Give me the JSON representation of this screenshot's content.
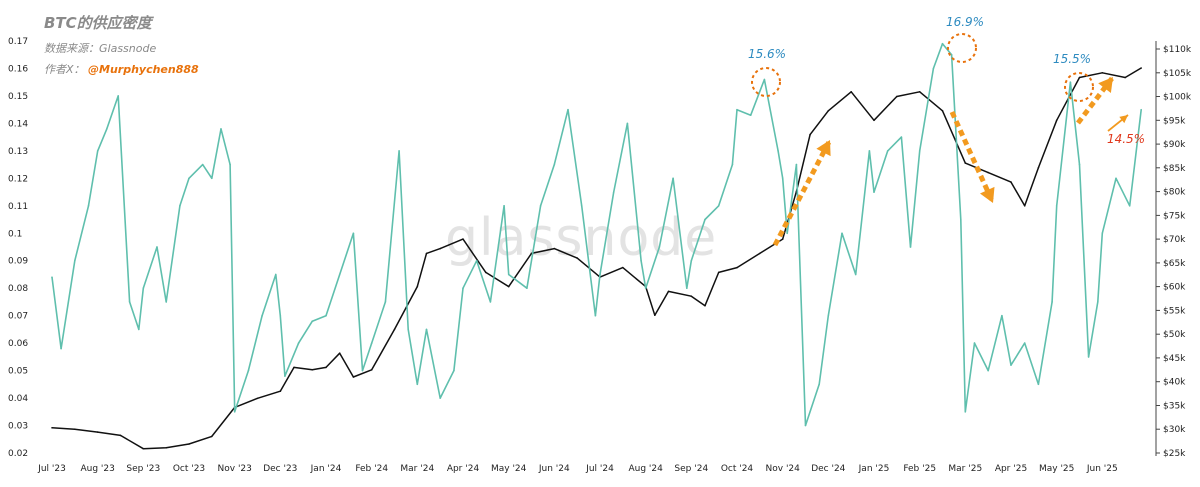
{
  "chart_data": {
    "type": "line",
    "title": "BTC的供应密度",
    "source_text": "数据来源：Glassnode",
    "author_label": "作者X：",
    "author_handle": "@Murphychen888",
    "watermark": "glassnode",
    "x_tick_labels": [
      "Jul '23",
      "Aug '23",
      "Sep '23",
      "Oct '23",
      "Nov '23",
      "Dec '23",
      "Jan '24",
      "Feb '24",
      "Mar '24",
      "Apr '24",
      "May '24",
      "Jun '24",
      "Jul '24",
      "Aug '24",
      "Sep '24",
      "Oct '24",
      "Nov '24",
      "Dec '24",
      "Jan '25",
      "Feb '25",
      "Mar '25",
      "Apr '25",
      "May '25",
      "Jun '25"
    ],
    "y_left": {
      "range": [
        0.02,
        0.17
      ],
      "ticks": [
        0.02,
        0.03,
        0.04,
        0.05,
        0.06,
        0.07,
        0.08,
        0.09,
        0.1,
        0.11,
        0.12,
        0.13,
        0.14,
        0.15,
        0.16,
        0.17
      ]
    },
    "y_right": {
      "range": [
        25000,
        110000
      ],
      "ticks": [
        "$25k",
        "$30k",
        "$35k",
        "$40k",
        "$45k",
        "$50k",
        "$55k",
        "$60k",
        "$65k",
        "$70k",
        "$75k",
        "$80k",
        "$85k",
        "$90k",
        "$95k",
        "$100k",
        "$105k",
        "$110k"
      ]
    },
    "series": [
      {
        "axis": "left",
        "color": "#5fbfad",
        "points": [
          [
            "Jul '23",
            0.084
          ],
          [
            "Jul '23+0.2",
            0.058
          ],
          [
            "Jul '23+0.5",
            0.09
          ],
          [
            "Jul '23+0.8",
            0.11
          ],
          [
            "Aug '23",
            0.13
          ],
          [
            "Aug '23+0.2",
            0.138
          ],
          [
            "Aug '23+0.45",
            0.15
          ],
          [
            "Aug '23+0.7",
            0.075
          ],
          [
            "Aug '23+0.9",
            0.065
          ],
          [
            "Sep '23",
            0.08
          ],
          [
            "Sep '23+0.3",
            0.095
          ],
          [
            "Sep '23+0.5",
            0.075
          ],
          [
            "Sep '23+0.8",
            0.11
          ],
          [
            "Oct '23",
            0.12
          ],
          [
            "Oct '23+0.3",
            0.125
          ],
          [
            "Oct '23+0.5",
            0.12
          ],
          [
            "Oct '23+0.7",
            0.138
          ],
          [
            "Oct '23+0.9",
            0.125
          ],
          [
            "Nov '23",
            0.035
          ],
          [
            "Nov '23+0.3",
            0.05
          ],
          [
            "Nov '23+0.6",
            0.07
          ],
          [
            "Nov '23+0.9",
            0.085
          ],
          [
            "Dec '23",
            0.07
          ],
          [
            "Dec '23+0.1",
            0.048
          ],
          [
            "Dec '23+0.4",
            0.06
          ],
          [
            "Dec '23+0.7",
            0.068
          ],
          [
            "Jan '24",
            0.07
          ],
          [
            "Jan '24+0.3",
            0.085
          ],
          [
            "Jan '24+0.6",
            0.1
          ],
          [
            "Jan '24+0.8",
            0.05
          ],
          [
            "Feb '24",
            0.06
          ],
          [
            "Feb '24+0.3",
            0.075
          ],
          [
            "Feb '24+0.6",
            0.13
          ],
          [
            "Feb '24+0.8",
            0.065
          ],
          [
            "Mar '24",
            0.045
          ],
          [
            "Mar '24+0.2",
            0.065
          ],
          [
            "Mar '24+0.5",
            0.04
          ],
          [
            "Mar '24+0.8",
            0.05
          ],
          [
            "Apr '24",
            0.08
          ],
          [
            "Apr '24+0.3",
            0.09
          ],
          [
            "Apr '24+0.6",
            0.075
          ],
          [
            "Apr '24+0.9",
            0.11
          ],
          [
            "May '24",
            0.085
          ],
          [
            "May '24+0.4",
            0.08
          ],
          [
            "May '24+0.7",
            0.11
          ],
          [
            "Jun '24",
            0.125
          ],
          [
            "Jun '24+0.3",
            0.145
          ],
          [
            "Jun '24+0.6",
            0.11
          ],
          [
            "Jun '24+0.9",
            0.07
          ],
          [
            "Jul '24",
            0.085
          ],
          [
            "Jul '24+0.3",
            0.115
          ],
          [
            "Jul '24+0.6",
            0.14
          ],
          [
            "Jul '24+0.9",
            0.09
          ],
          [
            "Aug '24",
            0.08
          ],
          [
            "Aug '24+0.3",
            0.095
          ],
          [
            "Aug '24+0.6",
            0.12
          ],
          [
            "Aug '24+0.9",
            0.08
          ],
          [
            "Sep '24",
            0.09
          ],
          [
            "Sep '24+0.3",
            0.105
          ],
          [
            "Sep '24+0.6",
            0.11
          ],
          [
            "Sep '24+0.9",
            0.125
          ],
          [
            "Oct '24",
            0.145
          ],
          [
            "Oct '24+0.3",
            0.143
          ],
          [
            "Oct '24+0.6",
            0.156
          ],
          [
            "Oct '24+0.9",
            0.13
          ],
          [
            "Nov '24",
            0.12
          ],
          [
            "Nov '24+0.1",
            0.1
          ],
          [
            "Nov '24+0.3",
            0.125
          ],
          [
            "Nov '24+0.5",
            0.03
          ],
          [
            "Nov '24+0.8",
            0.045
          ],
          [
            "Dec '24",
            0.07
          ],
          [
            "Dec '24+0.3",
            0.1
          ],
          [
            "Dec '24+0.6",
            0.085
          ],
          [
            "Dec '24+0.9",
            0.13
          ],
          [
            "Jan '25",
            0.115
          ],
          [
            "Jan '25+0.3",
            0.13
          ],
          [
            "Jan '25+0.6",
            0.135
          ],
          [
            "Jan '25+0.8",
            0.095
          ],
          [
            "Feb '25",
            0.13
          ],
          [
            "Feb '25+0.3",
            0.16
          ],
          [
            "Feb '25+0.5",
            0.169
          ],
          [
            "Feb '25+0.7",
            0.165
          ],
          [
            "Feb '25+0.9",
            0.105
          ],
          [
            "Mar '25",
            0.035
          ],
          [
            "Mar '25+0.2",
            0.06
          ],
          [
            "Mar '25+0.5",
            0.05
          ],
          [
            "Mar '25+0.8",
            0.07
          ],
          [
            "Apr '25",
            0.052
          ],
          [
            "Apr '25+0.3",
            0.06
          ],
          [
            "Apr '25+0.6",
            0.045
          ],
          [
            "Apr '25+0.9",
            0.075
          ],
          [
            "May '25",
            0.11
          ],
          [
            "May '25+0.3",
            0.155
          ],
          [
            "May '25+0.5",
            0.125
          ],
          [
            "May '25+0.7",
            0.055
          ],
          [
            "May '25+0.9",
            0.075
          ],
          [
            "Jun '25",
            0.1
          ],
          [
            "Jun '25+0.3",
            0.12
          ],
          [
            "Jun '25+0.6",
            0.11
          ],
          [
            "Jun '25+0.85",
            0.145
          ]
        ]
      },
      {
        "axis": "right",
        "color": "#111111",
        "points": [
          [
            "Jul '23",
            30300
          ],
          [
            "Jul '23+0.5",
            30000
          ],
          [
            "Aug '23",
            29400
          ],
          [
            "Aug '23+0.5",
            28700
          ],
          [
            "Sep '23",
            25900
          ],
          [
            "Sep '23+0.5",
            26100
          ],
          [
            "Oct '23",
            26900
          ],
          [
            "Oct '23+0.5",
            28500
          ],
          [
            "Nov '23",
            34600
          ],
          [
            "Nov '23+0.5",
            36500
          ],
          [
            "Dec '23",
            38000
          ],
          [
            "Dec '23+0.3",
            43000
          ],
          [
            "Dec '23+0.7",
            42500
          ],
          [
            "Jan '24",
            43000
          ],
          [
            "Jan '24+0.3",
            46000
          ],
          [
            "Jan '24+0.6",
            41000
          ],
          [
            "Feb '24",
            42500
          ],
          [
            "Feb '24+0.5",
            51000
          ],
          [
            "Mar '24",
            60000
          ],
          [
            "Mar '24+0.2",
            67000
          ],
          [
            "Mar '24+0.5",
            68000
          ],
          [
            "Apr '24",
            70000
          ],
          [
            "Apr '24+0.5",
            63000
          ],
          [
            "May '24",
            60000
          ],
          [
            "May '24+0.5",
            67000
          ],
          [
            "Jun '24",
            68000
          ],
          [
            "Jun '24+0.5",
            66000
          ],
          [
            "Jul '24",
            62000
          ],
          [
            "Jul '24+0.5",
            64000
          ],
          [
            "Aug '24",
            60000
          ],
          [
            "Aug '24+0.2",
            54000
          ],
          [
            "Aug '24+0.5",
            59000
          ],
          [
            "Sep '24",
            58000
          ],
          [
            "Sep '24+0.3",
            56000
          ],
          [
            "Sep '24+0.6",
            63000
          ],
          [
            "Oct '24",
            64000
          ],
          [
            "Oct '24+0.5",
            67000
          ],
          [
            "Nov '24",
            70000
          ],
          [
            "Nov '24+0.3",
            80000
          ],
          [
            "Nov '24+0.6",
            92000
          ],
          [
            "Dec '24",
            97000
          ],
          [
            "Dec '24+0.5",
            101000
          ],
          [
            "Jan '25",
            95000
          ],
          [
            "Jan '25+0.5",
            100000
          ],
          [
            "Feb '25",
            101000
          ],
          [
            "Feb '25+0.5",
            97000
          ],
          [
            "Mar '25",
            86000
          ],
          [
            "Mar '25+0.5",
            84000
          ],
          [
            "Apr '25",
            82000
          ],
          [
            "Apr '25+0.3",
            77000
          ],
          [
            "Apr '25+0.6",
            85000
          ],
          [
            "May '25",
            95000
          ],
          [
            "May '25+0.5",
            104000
          ],
          [
            "Jun '25",
            105000
          ],
          [
            "Jun '25+0.5",
            104000
          ],
          [
            "Jun '25+0.85",
            106000
          ]
        ]
      }
    ],
    "annotations": [
      {
        "text": "15.6%",
        "color": "#2e8bc0"
      },
      {
        "text": "16.9%",
        "color": "#2e8bc0"
      },
      {
        "text": "15.5%",
        "color": "#2e8bc0"
      },
      {
        "text": "14.5%",
        "color": "#e0381c"
      }
    ],
    "grid": false,
    "legend": "none"
  }
}
